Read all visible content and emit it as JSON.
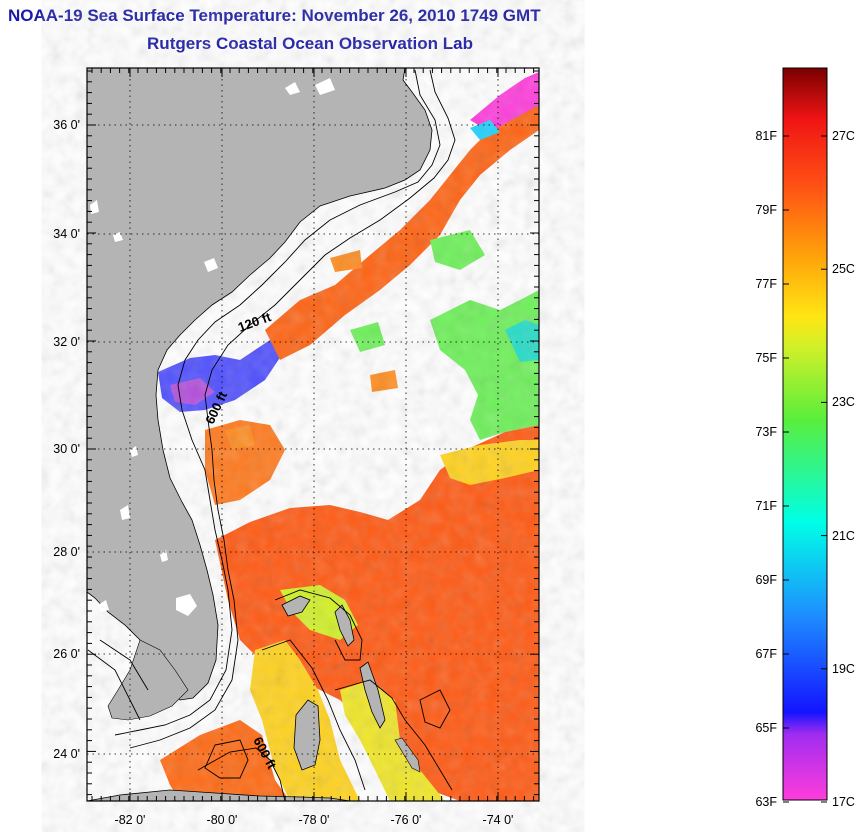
{
  "header": {
    "title": "NOAA-19 Sea Surface Temperature:  November 26, 2010 1749 GMT",
    "subtitle": "Rutgers Coastal Ocean Observation Lab"
  },
  "map": {
    "lat_labels": [
      "36 0'",
      "34 0'",
      "32 0'",
      "30 0'",
      "28 0'",
      "26 0'",
      "24 0'"
    ],
    "lon_labels": [
      "-82 0'",
      "-80 0'",
      "-78 0'",
      "-76 0'",
      "-74 0'"
    ],
    "depth_labels": [
      "120 ft",
      "600 ft",
      "600 ft"
    ],
    "colors": {
      "land": "#b4b4b4",
      "cloud": "#ffffff",
      "warm": "#ff5a14",
      "mid": "#ffd21e",
      "cool": "#6ef05a",
      "cold": "#3c50ff",
      "coldest": "#ff3cdc"
    }
  },
  "colorbar": {
    "fahrenheit_labels": [
      "81F",
      "79F",
      "77F",
      "75F",
      "73F",
      "71F",
      "69F",
      "67F",
      "65F",
      "63F"
    ],
    "celsius_labels": [
      "27C",
      "25C",
      "23C",
      "21C",
      "19C",
      "17C"
    ],
    "min_f": 63,
    "max_f": 84
  }
}
